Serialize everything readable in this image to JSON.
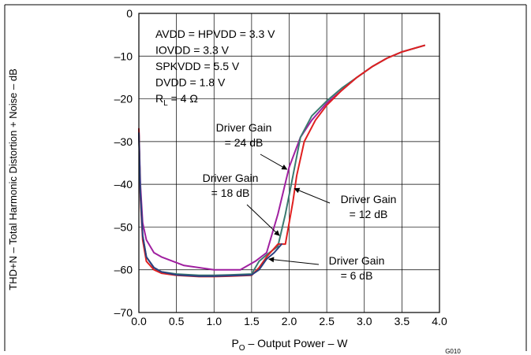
{
  "chart_data": {
    "type": "line",
    "title": "",
    "xlabel": {
      "main": "P",
      "sub": "O",
      "rest": " – Output Power – W"
    },
    "ylabel": "THD+N – Total Harmonic Distortion + Noise – dB",
    "xlim": [
      0,
      4.0
    ],
    "ylim": [
      -70,
      0
    ],
    "x_ticks": [
      0.0,
      0.5,
      1.0,
      1.5,
      2.0,
      2.5,
      3.0,
      3.5,
      4.0
    ],
    "x_tick_labels": [
      "0.0",
      "0.5",
      "1.0",
      "1.5",
      "2.0",
      "2.5",
      "3.0",
      "3.5",
      "4.0"
    ],
    "y_ticks": [
      0,
      -10,
      -20,
      -30,
      -40,
      -50,
      -60,
      -70
    ],
    "y_tick_labels": [
      "0",
      "–10",
      "–20",
      "–30",
      "–40",
      "–50",
      "–60",
      "–70"
    ],
    "grid": true,
    "figure_code": "G010",
    "conditions": [
      {
        "text": "AVDD = HPVDD = 3.3 V"
      },
      {
        "text": "IOVDD = 3.3 V"
      },
      {
        "text": "SPKVDD = 5.5 V"
      },
      {
        "text": "DVDD = 1.8 V"
      },
      {
        "main": "R",
        "sub": "L",
        "rest": "  = 4 Ω"
      }
    ],
    "series": [
      {
        "name": "Driver Gain = 24 dB",
        "color": "#a020a0",
        "x": [
          0.0,
          0.02,
          0.05,
          0.1,
          0.2,
          0.3,
          0.6,
          1.0,
          1.35,
          1.55,
          1.7,
          1.85,
          2.0,
          2.15,
          2.3,
          2.5,
          2.7,
          2.9,
          3.1,
          3.3,
          3.5,
          3.7,
          3.8
        ],
        "y": [
          -27,
          -40,
          -49,
          -53,
          -56,
          -57,
          -59,
          -60,
          -60,
          -58,
          -56,
          -47,
          -36,
          -29,
          -25,
          -21,
          -18,
          -15,
          -12.5,
          -10.5,
          -9,
          -8,
          -7.5
        ]
      },
      {
        "name": "Driver Gain = 18 dB",
        "color": "#3a7a70",
        "x": [
          0.0,
          0.02,
          0.05,
          0.1,
          0.2,
          0.3,
          0.5,
          0.8,
          1.0,
          1.2,
          1.5,
          1.6,
          1.7,
          1.85,
          1.95,
          2.05,
          2.15,
          2.3,
          2.5,
          2.7,
          2.9,
          3.1,
          3.3,
          3.5,
          3.7,
          3.8
        ],
        "y": [
          -28,
          -42,
          -52,
          -57,
          -59.5,
          -60.5,
          -61,
          -61.3,
          -61.3,
          -61.2,
          -61,
          -58,
          -56.5,
          -54.5,
          -47,
          -38,
          -29,
          -24,
          -20.5,
          -17.5,
          -15,
          -12.5,
          -10.5,
          -9,
          -8,
          -7.5
        ]
      },
      {
        "name": "Driver Gain = 12 dB",
        "color": "#e02020",
        "x": [
          0.0,
          0.02,
          0.05,
          0.1,
          0.2,
          0.3,
          0.5,
          0.8,
          1.0,
          1.2,
          1.5,
          1.6,
          1.7,
          1.85,
          1.95,
          2.05,
          2.1,
          2.2,
          2.35,
          2.5,
          2.7,
          2.9,
          3.1,
          3.3,
          3.5,
          3.7,
          3.8
        ],
        "y": [
          -27,
          -43,
          -53,
          -58,
          -60,
          -60.8,
          -61.3,
          -61.6,
          -61.6,
          -61.5,
          -61.3,
          -59.5,
          -57,
          -54,
          -54,
          -44,
          -38,
          -30,
          -25,
          -21.5,
          -18,
          -15,
          -12.5,
          -10.5,
          -9,
          -8,
          -7.5
        ]
      },
      {
        "name": "Driver Gain = 6 dB",
        "color": "#2a4080",
        "x": [
          0.0,
          0.02,
          0.05,
          0.1,
          0.2,
          0.3,
          0.5,
          0.8,
          1.0,
          1.2,
          1.5,
          1.6,
          1.7,
          1.8,
          1.9
        ],
        "y": [
          -28,
          -42,
          -52,
          -57,
          -59.5,
          -60.5,
          -61.2,
          -61.5,
          -61.5,
          -61.4,
          -61.2,
          -60,
          -57.5,
          -56,
          -54
        ]
      }
    ],
    "annotations": [
      {
        "lines": [
          "Driver Gain",
          "= 24 dB"
        ],
        "target": [
          1.97,
          -36.5
        ]
      },
      {
        "lines": [
          "Driver Gain",
          "= 18 dB"
        ],
        "target": [
          1.87,
          -52
        ]
      },
      {
        "lines": [
          "Driver Gain",
          "= 12 dB"
        ],
        "target": [
          2.07,
          -41
        ]
      },
      {
        "lines": [
          "Driver Gain",
          "= 6 dB"
        ],
        "target": [
          1.73,
          -57.5
        ]
      }
    ]
  }
}
